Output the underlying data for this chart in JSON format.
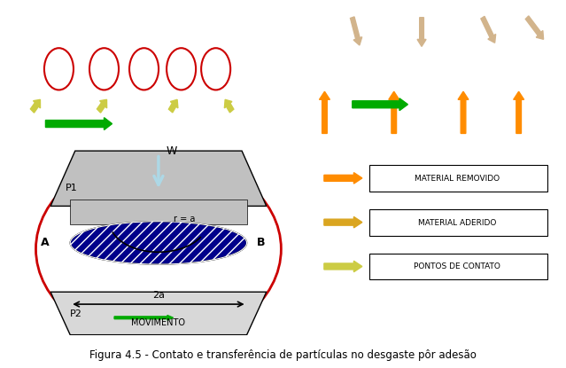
{
  "fig_width": 6.39,
  "fig_height": 4.15,
  "bg_color": "#ffffff",
  "caption": "Figura 4.5 - Contato e transferência de partículas no desgaste pôr adesão",
  "legend_items": [
    {
      "label": "MATERIAL REMOVIDO",
      "color": "#FF8C00"
    },
    {
      "label": "MATERIAL ADERIDO",
      "color": "#DAA520"
    },
    {
      "label": "PONTOS DE CONTATO",
      "color": "#CCCC00"
    }
  ],
  "dark_bg": "#404040",
  "contact_circle_color": "#CC0000",
  "green_arrow_color": "#00AA00",
  "blue_fill": "#00008B",
  "gray_fill": "#B0B0B0",
  "light_blue_arrow": "#ADD8E6",
  "orange_arrow": "#FF8C00",
  "tan_arrow": "#D2B48C"
}
